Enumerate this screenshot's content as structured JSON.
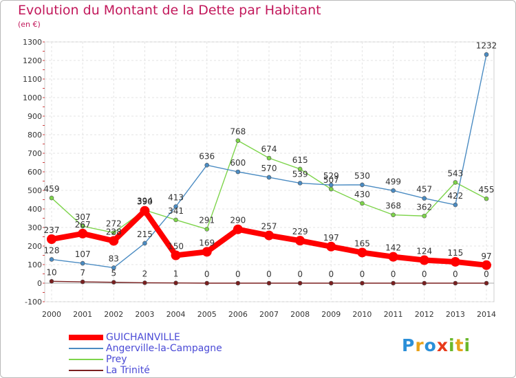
{
  "title": "Evolution du Montant de la Dette par Habitant",
  "subtitle": "(en €)",
  "logo": {
    "letters": [
      "P",
      "r",
      "o",
      "x",
      "i",
      "t",
      "i"
    ],
    "colors": [
      "#2b8fd8",
      "#e8a21a",
      "#2b8fd8",
      "#e83a1a",
      "#6ab82b",
      "#e8a21a",
      "#6ab82b"
    ]
  },
  "chart_data": {
    "type": "line",
    "x": [
      "2000",
      "2001",
      "2002",
      "2003",
      "2004",
      "2005",
      "2006",
      "2007",
      "2008",
      "2009",
      "2010",
      "2011",
      "2012",
      "2013",
      "2014"
    ],
    "ylim": [
      -100,
      1300
    ],
    "yticks": [
      -100,
      0,
      100,
      200,
      300,
      400,
      500,
      600,
      700,
      800,
      900,
      1000,
      1100,
      1200,
      1300
    ],
    "grid": true,
    "legend_position": "bottom-left",
    "series": [
      {
        "name": "GUICHAINVILLE",
        "color": "#ff0000",
        "emphasis": true,
        "values": [
          237,
          267,
          228,
          390,
          150,
          169,
          290,
          257,
          229,
          197,
          165,
          142,
          124,
          115,
          97
        ]
      },
      {
        "name": "Angerville-la-Campagne",
        "color": "#4a8bc2",
        "values": [
          128,
          107,
          83,
          215,
          413,
          636,
          600,
          570,
          539,
          529,
          530,
          499,
          457,
          422,
          1232
        ]
      },
      {
        "name": "Prey",
        "color": "#7dd44a",
        "values": [
          459,
          307,
          272,
          394,
          341,
          291,
          768,
          674,
          615,
          507,
          430,
          368,
          362,
          543,
          455
        ]
      },
      {
        "name": "La Trinité",
        "color": "#7a1f1f",
        "values": [
          10,
          7,
          5,
          2,
          1,
          0,
          0,
          0,
          0,
          0,
          0,
          0,
          0,
          0,
          0
        ]
      }
    ]
  }
}
